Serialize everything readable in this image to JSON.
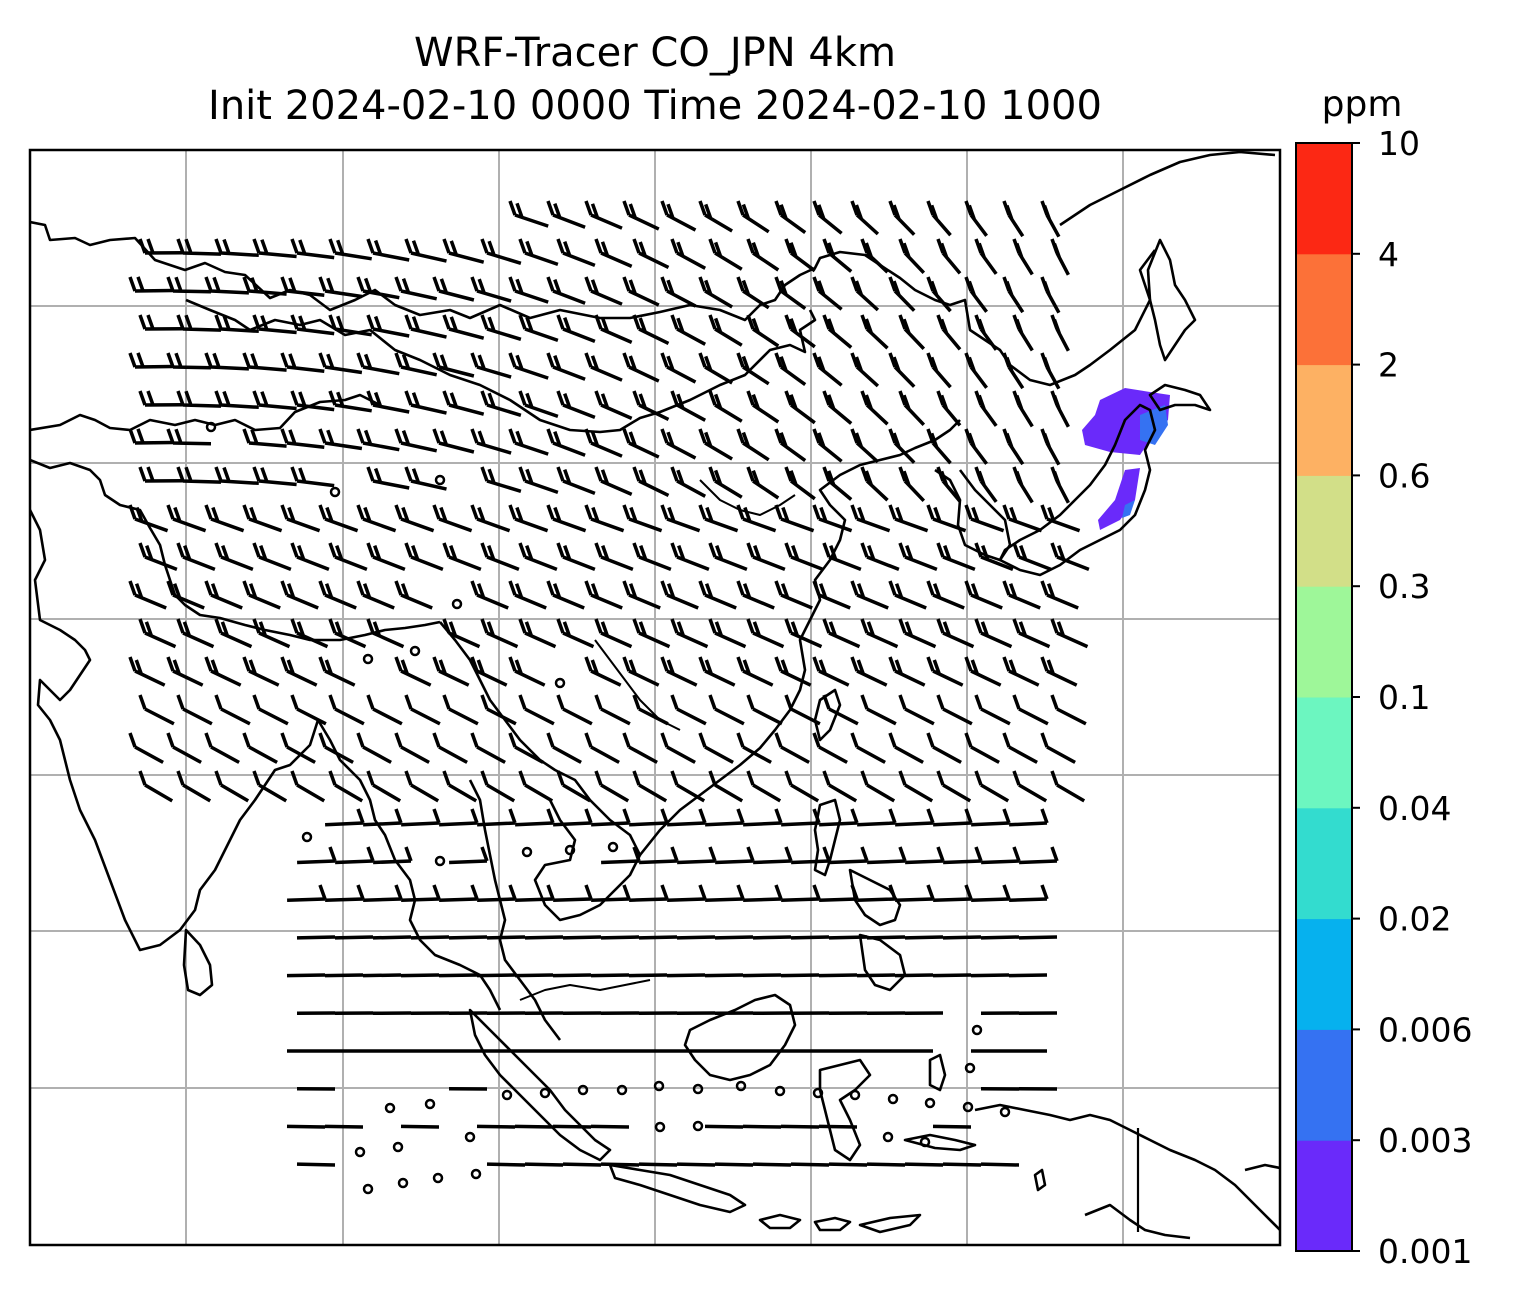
{
  "title": {
    "line1": "WRF-Tracer CO_JPN 4km",
    "line2": "Init 2024-02-10 0000 Time 2024-02-10 1000"
  },
  "colorbar": {
    "unit": "ppm",
    "levels": [
      "0.001",
      "0.003",
      "0.006",
      "0.02",
      "0.04",
      "0.1",
      "0.3",
      "0.6",
      "2",
      "4",
      "10"
    ],
    "colors": [
      "#6a2afa",
      "#3572f2",
      "#06b1ee",
      "#33dccf",
      "#6cf6c0",
      "#9ef799",
      "#d2df88",
      "#fdb163",
      "#fc7138",
      "#fc2814"
    ]
  },
  "map": {
    "plume_colors": [
      "#6a2afa",
      "#3572f2"
    ],
    "coastline_color": "#000000",
    "gridline_color": "#b0b0b0",
    "wind_symbols": [
      "wind-barb",
      "calm-circle"
    ]
  }
}
